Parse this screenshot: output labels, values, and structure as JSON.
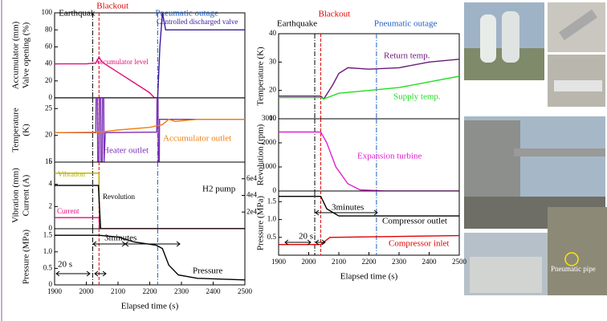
{
  "chart_data": [
    {
      "type": "line",
      "ylabel": [
        "Accumulator (mm)",
        "Valve opening (%)"
      ],
      "xlim": [
        1900,
        2500
      ],
      "ylim": [
        0,
        100
      ],
      "yticks": [
        0,
        20,
        40,
        60,
        80,
        100
      ],
      "events": [
        {
          "label": "Earthquak",
          "x": 2020,
          "color": "#000000"
        },
        {
          "label": "Blackout",
          "x": 2040,
          "color": "#e00000"
        },
        {
          "label": "Pneumatic outage",
          "x": 2225,
          "color": "#1f5fbf"
        }
      ],
      "series": [
        {
          "name": "Accumulator level",
          "color": "#e0107a",
          "x": [
            1900,
            2000,
            2030,
            2040,
            2050,
            2100,
            2150,
            2200,
            2215,
            2500
          ],
          "values": [
            40,
            40,
            41,
            48,
            42,
            30,
            18,
            6,
            0,
            0
          ]
        },
        {
          "name": "Controlled discharged valve",
          "color": "#3a1a9a",
          "x": [
            1900,
            2225,
            2232,
            2240,
            2250,
            2500
          ],
          "values": [
            0,
            0,
            60,
            100,
            80,
            80
          ]
        }
      ]
    },
    {
      "type": "line",
      "ylabel": [
        "Temperature",
        "(K)"
      ],
      "xlim": [
        1900,
        2500
      ],
      "ylim": [
        15,
        27
      ],
      "yticks": [
        15,
        20,
        25
      ],
      "series": [
        {
          "name": "Heater outlet",
          "color": "#7b2fb5",
          "x": [
            1900,
            2030,
            2031,
            2035,
            2036,
            2040,
            2041,
            2045,
            2046,
            2050,
            2051,
            2055,
            2056,
            2060,
            2200,
            2222,
            2223,
            2226,
            2227,
            2230,
            2231,
            2500
          ],
          "values": [
            20.5,
            20.5,
            27,
            27,
            15,
            15,
            27,
            27,
            15,
            15,
            27,
            27,
            15,
            20.5,
            20.6,
            20.6,
            27,
            27,
            15,
            15,
            23,
            23
          ]
        },
        {
          "name": "Accumulator outlet",
          "color": "#f07f10",
          "x": [
            1900,
            2040,
            2100,
            2200,
            2240,
            2260,
            2280,
            2350,
            2500
          ],
          "values": [
            20.5,
            20.6,
            21,
            21.5,
            22,
            23,
            22.6,
            23,
            23
          ]
        }
      ]
    },
    {
      "type": "line",
      "ylabel": [
        "Vibration (mm)",
        "Current (A)"
      ],
      "note": "H2 pump",
      "xlim": [
        1900,
        2500
      ],
      "ylim": [
        0,
        6
      ],
      "yticks": [
        0,
        2,
        4,
        6
      ],
      "y2lim": [
        0,
        80000
      ],
      "y2ticks": [
        {
          "value": 20000,
          "label": "2e4"
        },
        {
          "value": 40000,
          "label": "4e4"
        },
        {
          "value": 60000,
          "label": "6e4"
        }
      ],
      "series": [
        {
          "name": "Vibration",
          "color": "#b8b000",
          "x": [
            1900,
            2040,
            2042,
            2500
          ],
          "values": [
            5,
            5,
            0,
            0
          ]
        },
        {
          "name": "Current",
          "color": "#e0107a",
          "x": [
            1900,
            2040,
            2042,
            2500
          ],
          "values": [
            1,
            1,
            0,
            0
          ]
        },
        {
          "name": "Revolution",
          "color": "#000000",
          "axis": "y2",
          "x": [
            1900,
            2038,
            2045,
            2500
          ],
          "values": [
            52000,
            52000,
            0,
            0
          ]
        }
      ]
    },
    {
      "type": "line",
      "ylabel": [
        "Pressure (MPa)"
      ],
      "xlabel": "Elapsed time (s)",
      "annotations": [
        "3minutes",
        "20 s"
      ],
      "xlim": [
        1900,
        2500
      ],
      "ylim": [
        0,
        1.7
      ],
      "yticks": [
        0,
        0.5,
        {
          "value": 1,
          "label": "1.0"
        },
        1.5
      ],
      "xticks": [
        1900,
        2000,
        2100,
        2200,
        2300,
        2400,
        2500
      ],
      "series": [
        {
          "name": "Pressure",
          "color": "#000000",
          "x": [
            1900,
            2040,
            2100,
            2150,
            2220,
            2230,
            2240,
            2260,
            2290,
            2350,
            2500
          ],
          "values": [
            1.5,
            1.5,
            1.45,
            1.3,
            1.2,
            1.15,
            1.1,
            0.6,
            0.3,
            0.2,
            0.15
          ]
        }
      ]
    },
    {
      "type": "line",
      "ylabel": [
        "Temperature (K)"
      ],
      "xlim": [
        1900,
        2500
      ],
      "ylim": [
        10,
        40
      ],
      "yticks": [
        10,
        20,
        30,
        40
      ],
      "events": [
        {
          "label": "Earthquake",
          "x": 2020,
          "color": "#000000"
        },
        {
          "label": "Blackout",
          "x": 2040,
          "color": "#e00000"
        },
        {
          "label": "Pneumatic outage",
          "x": 2225,
          "color": "#1f5fbf"
        }
      ],
      "series": [
        {
          "name": "Return temp.",
          "color": "#6a1b7a",
          "x": [
            1900,
            2040,
            2050,
            2080,
            2100,
            2130,
            2200,
            2300,
            2400,
            2500
          ],
          "values": [
            18,
            18,
            17,
            22,
            26,
            28,
            27.5,
            28,
            30,
            31
          ]
        },
        {
          "name": "Supply temp.",
          "color": "#22dd22",
          "x": [
            1900,
            2040,
            2050,
            2100,
            2200,
            2300,
            2400,
            2500
          ],
          "values": [
            17.5,
            17.5,
            17,
            19,
            20,
            21,
            23,
            25
          ]
        }
      ]
    },
    {
      "type": "line",
      "ylabel": [
        "Revolution (rpm)"
      ],
      "xlim": [
        1900,
        2500
      ],
      "ylim": [
        0,
        3000
      ],
      "yticks": [
        0,
        1000,
        2000,
        3000
      ],
      "series": [
        {
          "name": "Expansion turbine",
          "color": "#e020d0",
          "x": [
            1900,
            2040,
            2060,
            2090,
            2130,
            2170,
            2250,
            2500
          ],
          "values": [
            2450,
            2450,
            2000,
            1000,
            300,
            50,
            0,
            0
          ]
        }
      ]
    },
    {
      "type": "line",
      "ylabel": [
        "Pressure (MPa)"
      ],
      "xlabel": "Elapsed time (s)",
      "annotations": [
        "3minutes",
        "20 s"
      ],
      "xlim": [
        1900,
        2500
      ],
      "ylim": [
        0,
        1.8
      ],
      "yticks": [
        0.5,
        {
          "value": 1,
          "label": "1.0"
        },
        1.5
      ],
      "xticks": [
        1900,
        2000,
        2100,
        2200,
        2300,
        2400,
        2500
      ],
      "series": [
        {
          "name": "Compressor outlet",
          "color": "#000000",
          "x": [
            1900,
            2040,
            2060,
            2100,
            2500
          ],
          "values": [
            1.65,
            1.65,
            1.3,
            1.1,
            1.1
          ]
        },
        {
          "name": "Compressor inlet",
          "color": "#e00000",
          "x": [
            1900,
            2040,
            2070,
            2500
          ],
          "values": [
            0.3,
            0.3,
            0.5,
            0.55
          ]
        }
      ]
    }
  ],
  "photos": {
    "label": "Pneumatic pipe"
  }
}
